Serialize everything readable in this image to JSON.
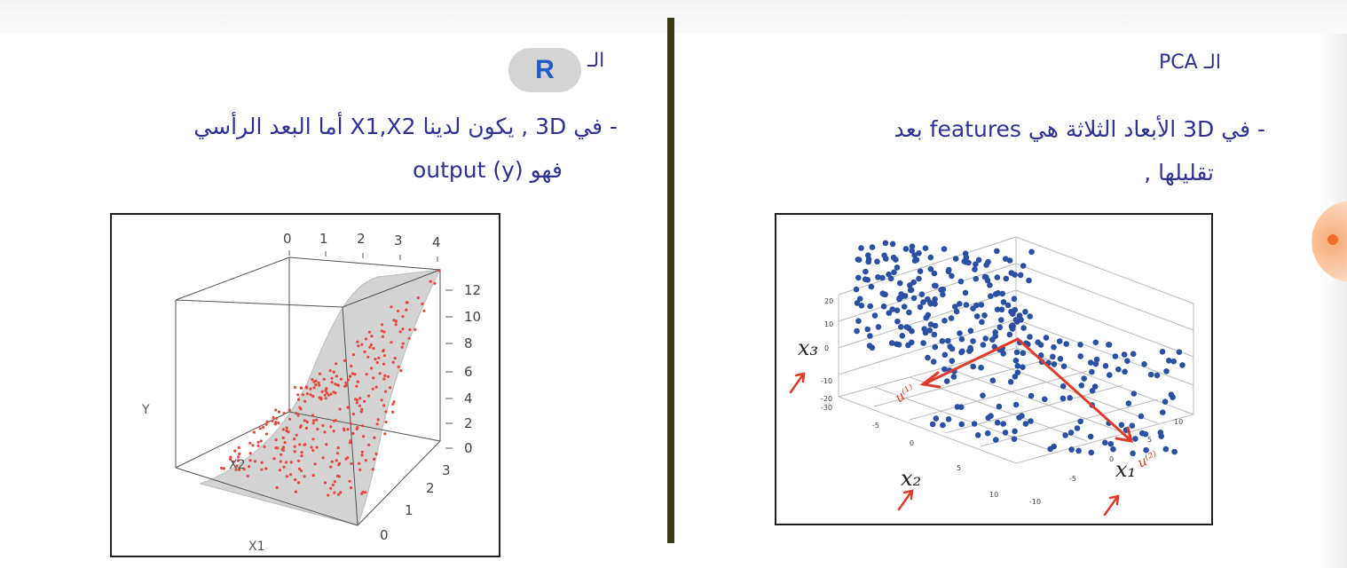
{
  "right_section": {
    "label_prefix": "الـ",
    "label_term": "PCA",
    "line1": "- في 3D الأبعاد الثلاثة هي features بعد",
    "line2": "تقليلها ,",
    "figure": {
      "axis_x1": "x₁",
      "axis_x2": "x₂",
      "axis_x3": "x₃",
      "pc1_label": "u⁽¹⁾",
      "pc2_label": "u⁽²⁾"
    }
  },
  "left_section": {
    "label_prefix": "الـ",
    "badge": "R",
    "line1": "- في 3D , يكون لدينا X1,X2 أما البعد الرأسي",
    "line2": "فهو output (y)",
    "figure": {
      "axis_y": "Y",
      "axis_x1": "X1",
      "axis_x2": "X2",
      "top_ticks": [
        "0",
        "1",
        "2",
        "3",
        "4"
      ],
      "right_ticks": [
        "12",
        "10",
        "8",
        "6",
        "4",
        "2",
        "0"
      ],
      "depth_ticks": [
        "3",
        "2",
        "1",
        "0"
      ]
    }
  },
  "colors": {
    "text": "#2e3192",
    "divider": "#3a3a16",
    "points_left": "#e8473f",
    "points_right": "#2b4fa3",
    "arrows": "#e03a2a"
  }
}
